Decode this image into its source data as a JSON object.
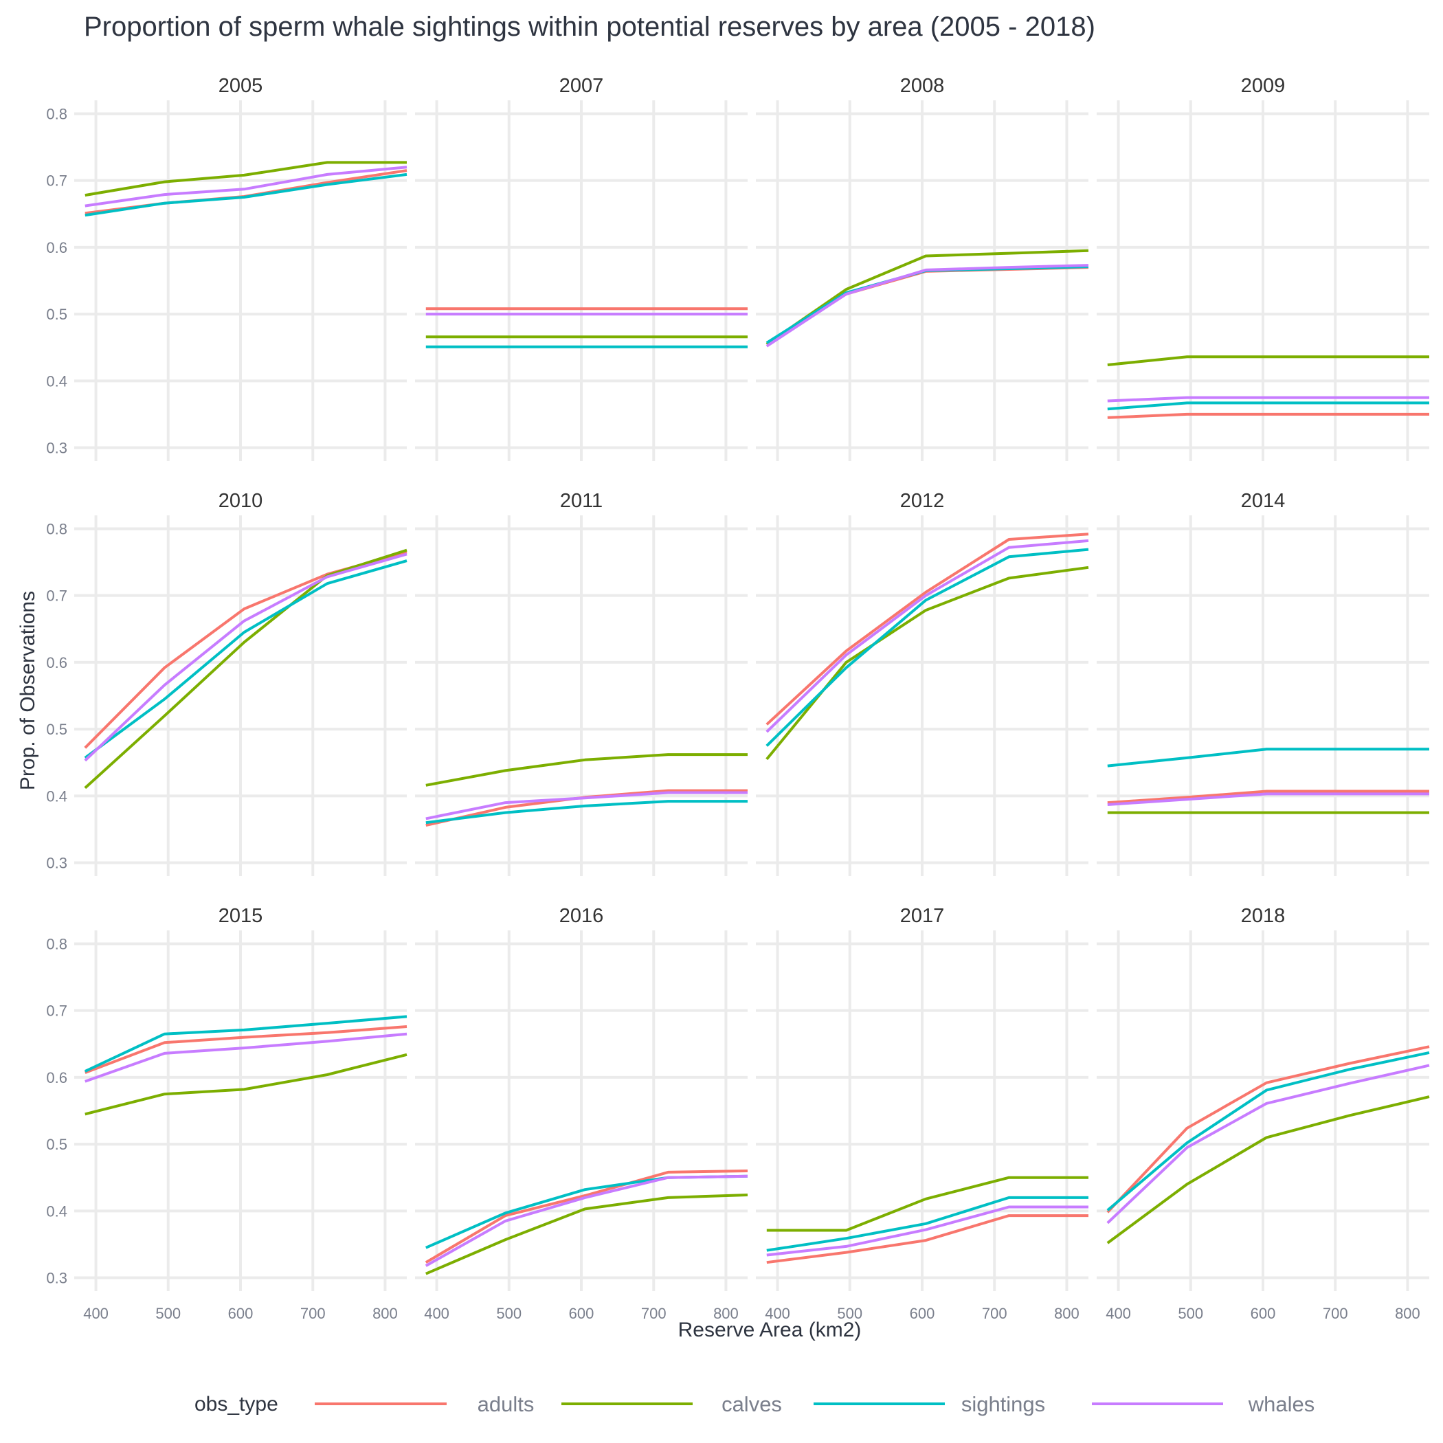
{
  "chart_data": {
    "type": "line",
    "title": "Proportion of sperm whale sightings within potential reserves by area (2005 - 2018)",
    "xlabel": "Reserve Area (km2)",
    "ylabel": "Prop. of Observations",
    "xlim": [
      370,
      830
    ],
    "ylim": [
      0.28,
      0.82
    ],
    "x_ticks": [
      400,
      500,
      600,
      700,
      800
    ],
    "y_ticks": [
      0.3,
      0.4,
      0.5,
      0.6,
      0.7,
      0.8
    ],
    "x_tick_labels": [
      "400",
      "500",
      "600",
      "700",
      "800"
    ],
    "y_tick_labels": [
      "0.3",
      "0.4",
      "0.5",
      "0.6",
      "0.7",
      "0.8"
    ],
    "grid": true,
    "legend": {
      "title": "obs_type",
      "position": "bottom",
      "entries": [
        {
          "name": "adults",
          "color": "#F8766D"
        },
        {
          "name": "calves",
          "color": "#7CAE00"
        },
        {
          "name": "sightings",
          "color": "#00BFC4"
        },
        {
          "name": "whales",
          "color": "#C77CFF"
        }
      ]
    },
    "x": [
      385,
      495,
      605,
      720,
      830
    ],
    "panels": [
      {
        "year": "2005",
        "series": [
          {
            "name": "adults",
            "values": [
              0.651,
              0.666,
              0.676,
              0.697,
              0.715
            ]
          },
          {
            "name": "calves",
            "values": [
              0.678,
              0.698,
              0.708,
              0.727,
              0.727
            ]
          },
          {
            "name": "sightings",
            "values": [
              0.648,
              0.666,
              0.675,
              0.694,
              0.709
            ]
          },
          {
            "name": "whales",
            "values": [
              0.662,
              0.679,
              0.687,
              0.709,
              0.72
            ]
          }
        ]
      },
      {
        "year": "2007",
        "series": [
          {
            "name": "adults",
            "values": [
              0.508,
              0.508,
              0.508,
              0.508,
              0.508
            ]
          },
          {
            "name": "calves",
            "values": [
              0.466,
              0.466,
              0.466,
              0.466,
              0.466
            ]
          },
          {
            "name": "sightings",
            "values": [
              0.451,
              0.451,
              0.451,
              0.451,
              0.451
            ]
          },
          {
            "name": "whales",
            "values": [
              0.5,
              0.5,
              0.5,
              0.5,
              0.5
            ]
          }
        ]
      },
      {
        "year": "2008",
        "series": [
          {
            "name": "adults",
            "values": [
              0.455,
              0.53,
              0.564,
              0.567,
              0.57
            ]
          },
          {
            "name": "calves",
            "values": [
              0.455,
              0.537,
              0.587,
              0.591,
              0.595
            ]
          },
          {
            "name": "sightings",
            "values": [
              0.457,
              0.532,
              0.565,
              0.568,
              0.571
            ]
          },
          {
            "name": "whales",
            "values": [
              0.452,
              0.53,
              0.566,
              0.57,
              0.573
            ]
          }
        ]
      },
      {
        "year": "2009",
        "series": [
          {
            "name": "adults",
            "values": [
              0.345,
              0.35,
              0.35,
              0.35,
              0.35
            ]
          },
          {
            "name": "calves",
            "values": [
              0.424,
              0.436,
              0.436,
              0.436,
              0.436
            ]
          },
          {
            "name": "sightings",
            "values": [
              0.358,
              0.367,
              0.367,
              0.367,
              0.367
            ]
          },
          {
            "name": "whales",
            "values": [
              0.37,
              0.375,
              0.375,
              0.375,
              0.375
            ]
          }
        ]
      },
      {
        "year": "2010",
        "series": [
          {
            "name": "adults",
            "values": [
              0.472,
              0.592,
              0.68,
              0.732,
              0.765
            ]
          },
          {
            "name": "calves",
            "values": [
              0.412,
              0.52,
              0.63,
              0.73,
              0.768
            ]
          },
          {
            "name": "sightings",
            "values": [
              0.457,
              0.545,
              0.645,
              0.718,
              0.752
            ]
          },
          {
            "name": "whales",
            "values": [
              0.453,
              0.566,
              0.662,
              0.728,
              0.762
            ]
          }
        ]
      },
      {
        "year": "2011",
        "series": [
          {
            "name": "adults",
            "values": [
              0.356,
              0.383,
              0.398,
              0.408,
              0.408
            ]
          },
          {
            "name": "calves",
            "values": [
              0.416,
              0.438,
              0.454,
              0.462,
              0.462
            ]
          },
          {
            "name": "sightings",
            "values": [
              0.36,
              0.375,
              0.385,
              0.392,
              0.392
            ]
          },
          {
            "name": "whales",
            "values": [
              0.366,
              0.39,
              0.397,
              0.405,
              0.405
            ]
          }
        ]
      },
      {
        "year": "2012",
        "series": [
          {
            "name": "adults",
            "values": [
              0.507,
              0.617,
              0.705,
              0.784,
              0.792
            ]
          },
          {
            "name": "calves",
            "values": [
              0.455,
              0.6,
              0.678,
              0.726,
              0.742
            ]
          },
          {
            "name": "sightings",
            "values": [
              0.475,
              0.592,
              0.693,
              0.758,
              0.769
            ]
          },
          {
            "name": "whales",
            "values": [
              0.496,
              0.611,
              0.7,
              0.772,
              0.782
            ]
          }
        ]
      },
      {
        "year": "2014",
        "series": [
          {
            "name": "adults",
            "values": [
              0.39,
              0.398,
              0.407,
              0.407,
              0.407
            ]
          },
          {
            "name": "calves",
            "values": [
              0.375,
              0.375,
              0.375,
              0.375,
              0.375
            ]
          },
          {
            "name": "sightings",
            "values": [
              0.445,
              0.457,
              0.47,
              0.47,
              0.47
            ]
          },
          {
            "name": "whales",
            "values": [
              0.387,
              0.395,
              0.403,
              0.403,
              0.403
            ]
          }
        ]
      },
      {
        "year": "2015",
        "series": [
          {
            "name": "adults",
            "values": [
              0.607,
              0.652,
              0.66,
              0.667,
              0.676
            ]
          },
          {
            "name": "calves",
            "values": [
              0.545,
              0.575,
              0.582,
              0.604,
              0.634
            ]
          },
          {
            "name": "sightings",
            "values": [
              0.609,
              0.665,
              0.671,
              0.681,
              0.691
            ]
          },
          {
            "name": "whales",
            "values": [
              0.594,
              0.636,
              0.644,
              0.654,
              0.665
            ]
          }
        ]
      },
      {
        "year": "2016",
        "series": [
          {
            "name": "adults",
            "values": [
              0.323,
              0.393,
              0.423,
              0.458,
              0.46
            ]
          },
          {
            "name": "calves",
            "values": [
              0.306,
              0.357,
              0.403,
              0.42,
              0.424
            ]
          },
          {
            "name": "sightings",
            "values": [
              0.345,
              0.397,
              0.432,
              0.45,
              0.452
            ]
          },
          {
            "name": "whales",
            "values": [
              0.318,
              0.385,
              0.42,
              0.45,
              0.452
            ]
          }
        ]
      },
      {
        "year": "2017",
        "series": [
          {
            "name": "adults",
            "values": [
              0.323,
              0.338,
              0.356,
              0.393,
              0.393
            ]
          },
          {
            "name": "calves",
            "values": [
              0.371,
              0.371,
              0.418,
              0.45,
              0.45
            ]
          },
          {
            "name": "sightings",
            "values": [
              0.341,
              0.359,
              0.381,
              0.42,
              0.42
            ]
          },
          {
            "name": "whales",
            "values": [
              0.334,
              0.347,
              0.372,
              0.406,
              0.406
            ]
          }
        ]
      },
      {
        "year": "2018",
        "series": [
          {
            "name": "adults",
            "values": [
              0.398,
              0.524,
              0.592,
              0.621,
              0.646
            ]
          },
          {
            "name": "calves",
            "values": [
              0.352,
              0.44,
              0.51,
              0.543,
              0.571
            ]
          },
          {
            "name": "sightings",
            "values": [
              0.401,
              0.502,
              0.581,
              0.612,
              0.637
            ]
          },
          {
            "name": "whales",
            "values": [
              0.382,
              0.495,
              0.561,
              0.591,
              0.618
            ]
          }
        ]
      }
    ]
  }
}
